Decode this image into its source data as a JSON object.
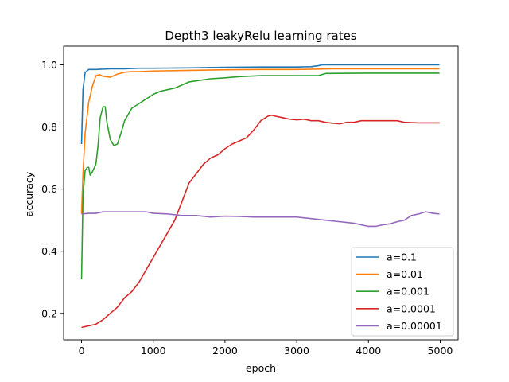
{
  "chart_data": {
    "type": "line",
    "title": "Depth3 leakyRelu learning rates",
    "xlabel": "epoch",
    "ylabel": "accuracy",
    "xlim": [
      -250,
      5250
    ],
    "ylim": [
      0.115,
      1.06
    ],
    "xticks": [
      0,
      1000,
      2000,
      3000,
      4000,
      5000
    ],
    "yticks": [
      0.2,
      0.4,
      0.6,
      0.8,
      1.0
    ],
    "xtick_labels": [
      "0",
      "1000",
      "2000",
      "3000",
      "4000",
      "5000"
    ],
    "ytick_labels": [
      "0.2",
      "0.4",
      "0.6",
      "0.8",
      "1.0"
    ],
    "grid": false,
    "legend_position": "lower-right",
    "series": [
      {
        "name": "a=0.1",
        "color": "#1f77b4",
        "x": [
          0,
          20,
          50,
          100,
          200,
          400,
          600,
          800,
          1000,
          1500,
          2000,
          2500,
          3000,
          3200,
          3300,
          3350,
          3400,
          4000,
          4500,
          4990
        ],
        "y": [
          0.745,
          0.92,
          0.975,
          0.985,
          0.985,
          0.987,
          0.987,
          0.989,
          0.989,
          0.99,
          0.992,
          0.993,
          0.993,
          0.994,
          0.997,
          1.0,
          1.0,
          1.0,
          1.0,
          1.0
        ]
      },
      {
        "name": "a=0.01",
        "color": "#ff7f0e",
        "x": [
          0,
          20,
          50,
          100,
          150,
          200,
          250,
          300,
          400,
          500,
          600,
          700,
          800,
          1000,
          1500,
          2000,
          2500,
          3000,
          3500,
          4000,
          4500,
          4990
        ],
        "y": [
          0.52,
          0.65,
          0.78,
          0.88,
          0.93,
          0.965,
          0.968,
          0.963,
          0.96,
          0.97,
          0.976,
          0.978,
          0.978,
          0.98,
          0.982,
          0.984,
          0.985,
          0.985,
          0.987,
          0.987,
          0.987,
          0.987
        ]
      },
      {
        "name": "a=0.001",
        "color": "#2ca02c",
        "x": [
          0,
          20,
          50,
          80,
          100,
          120,
          150,
          200,
          230,
          260,
          300,
          330,
          350,
          400,
          450,
          500,
          550,
          600,
          650,
          700,
          800,
          900,
          1000,
          1100,
          1300,
          1500,
          1800,
          2000,
          2200,
          2500,
          3000,
          3300,
          3400,
          4000,
          4990
        ],
        "y": [
          0.31,
          0.58,
          0.66,
          0.67,
          0.67,
          0.645,
          0.655,
          0.68,
          0.74,
          0.83,
          0.865,
          0.865,
          0.82,
          0.76,
          0.74,
          0.745,
          0.78,
          0.82,
          0.84,
          0.86,
          0.875,
          0.89,
          0.905,
          0.915,
          0.925,
          0.945,
          0.955,
          0.958,
          0.962,
          0.965,
          0.965,
          0.965,
          0.972,
          0.973,
          0.973
        ]
      },
      {
        "name": "a=0.0001",
        "color": "#d62728",
        "x": [
          0,
          100,
          200,
          300,
          400,
          500,
          600,
          700,
          800,
          900,
          1000,
          1100,
          1200,
          1300,
          1400,
          1500,
          1600,
          1700,
          1800,
          1900,
          2000,
          2100,
          2200,
          2300,
          2400,
          2500,
          2600,
          2650,
          2700,
          2800,
          2900,
          3000,
          3100,
          3200,
          3300,
          3400,
          3500,
          3600,
          3700,
          3800,
          3900,
          4000,
          4200,
          4400,
          4500,
          4700,
          4990
        ],
        "y": [
          0.155,
          0.16,
          0.165,
          0.18,
          0.2,
          0.22,
          0.25,
          0.27,
          0.3,
          0.34,
          0.38,
          0.42,
          0.46,
          0.5,
          0.56,
          0.62,
          0.65,
          0.68,
          0.7,
          0.71,
          0.73,
          0.745,
          0.755,
          0.765,
          0.79,
          0.82,
          0.835,
          0.838,
          0.835,
          0.83,
          0.825,
          0.823,
          0.825,
          0.82,
          0.82,
          0.815,
          0.812,
          0.81,
          0.815,
          0.815,
          0.82,
          0.82,
          0.82,
          0.82,
          0.815,
          0.813,
          0.813
        ]
      },
      {
        "name": "a=0.00001",
        "color": "#9467bd",
        "x": [
          0,
          100,
          200,
          300,
          500,
          700,
          900,
          1000,
          1200,
          1400,
          1600,
          1800,
          2000,
          2200,
          2400,
          2600,
          2800,
          3000,
          3200,
          3400,
          3600,
          3800,
          4000,
          4100,
          4200,
          4300,
          4400,
          4500,
          4600,
          4700,
          4800,
          4900,
          4990
        ],
        "y": [
          0.52,
          0.522,
          0.522,
          0.527,
          0.527,
          0.527,
          0.527,
          0.522,
          0.52,
          0.515,
          0.515,
          0.51,
          0.513,
          0.512,
          0.51,
          0.51,
          0.51,
          0.51,
          0.505,
          0.5,
          0.495,
          0.49,
          0.48,
          0.48,
          0.485,
          0.488,
          0.495,
          0.5,
          0.515,
          0.52,
          0.527,
          0.522,
          0.52
        ]
      }
    ]
  }
}
